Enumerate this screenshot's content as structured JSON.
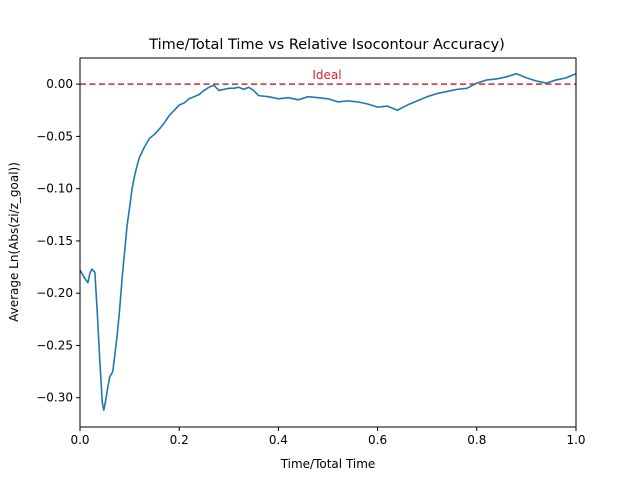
{
  "chart_data": {
    "type": "line",
    "title": "Time/Total Time vs Relative Isocontour Accuracy)",
    "xlabel": "Time/Total Time",
    "ylabel": "Average Ln(Abs(zi/z_goal))",
    "xlim": [
      0.0,
      1.0
    ],
    "ylim": [
      -0.328,
      0.025
    ],
    "x_ticks": [
      0.0,
      0.2,
      0.4,
      0.6,
      0.8,
      1.0
    ],
    "x_tick_labels": [
      "0.0",
      "0.2",
      "0.4",
      "0.6",
      "0.8",
      "1.0"
    ],
    "y_ticks": [
      0.0,
      -0.05,
      -0.1,
      -0.15,
      -0.2,
      -0.25,
      -0.3
    ],
    "y_tick_labels": [
      "0.00",
      "−0.05",
      "−0.10",
      "−0.15",
      "−0.20",
      "−0.25",
      "−0.30"
    ],
    "grid": false,
    "series": [
      {
        "color": "#1f77b4",
        "x": [
          0.0,
          0.01,
          0.016,
          0.02,
          0.024,
          0.03,
          0.035,
          0.04,
          0.045,
          0.048,
          0.052,
          0.056,
          0.06,
          0.066,
          0.07,
          0.075,
          0.08,
          0.085,
          0.09,
          0.095,
          0.1,
          0.105,
          0.11,
          0.115,
          0.12,
          0.13,
          0.14,
          0.15,
          0.16,
          0.17,
          0.18,
          0.19,
          0.2,
          0.21,
          0.22,
          0.23,
          0.24,
          0.25,
          0.26,
          0.27,
          0.28,
          0.29,
          0.3,
          0.31,
          0.32,
          0.33,
          0.34,
          0.35,
          0.36,
          0.38,
          0.4,
          0.42,
          0.44,
          0.46,
          0.48,
          0.5,
          0.52,
          0.54,
          0.56,
          0.58,
          0.6,
          0.62,
          0.64,
          0.66,
          0.68,
          0.7,
          0.72,
          0.74,
          0.76,
          0.78,
          0.8,
          0.82,
          0.84,
          0.86,
          0.88,
          0.9,
          0.92,
          0.94,
          0.96,
          0.98,
          1.0
        ],
        "y": [
          -0.178,
          -0.186,
          -0.19,
          -0.181,
          -0.177,
          -0.18,
          -0.22,
          -0.265,
          -0.305,
          -0.312,
          -0.302,
          -0.29,
          -0.28,
          -0.275,
          -0.26,
          -0.24,
          -0.215,
          -0.185,
          -0.16,
          -0.135,
          -0.118,
          -0.1,
          -0.088,
          -0.078,
          -0.07,
          -0.06,
          -0.052,
          -0.048,
          -0.043,
          -0.037,
          -0.03,
          -0.025,
          -0.02,
          -0.018,
          -0.014,
          -0.012,
          -0.01,
          -0.006,
          -0.003,
          -0.001,
          -0.006,
          -0.005,
          -0.004,
          -0.004,
          -0.003,
          -0.005,
          -0.003,
          -0.006,
          -0.011,
          -0.012,
          -0.014,
          -0.013,
          -0.015,
          -0.012,
          -0.013,
          -0.014,
          -0.017,
          -0.016,
          -0.017,
          -0.019,
          -0.022,
          -0.021,
          -0.025,
          -0.02,
          -0.016,
          -0.012,
          -0.009,
          -0.007,
          -0.005,
          -0.004,
          0.001,
          0.004,
          0.005,
          0.007,
          0.01,
          0.006,
          0.003,
          0.001,
          0.004,
          0.006,
          0.01
        ]
      }
    ],
    "reference_line": {
      "y": 0.0,
      "color": "#d62728",
      "style": "dashed",
      "label": "Ideal"
    }
  }
}
